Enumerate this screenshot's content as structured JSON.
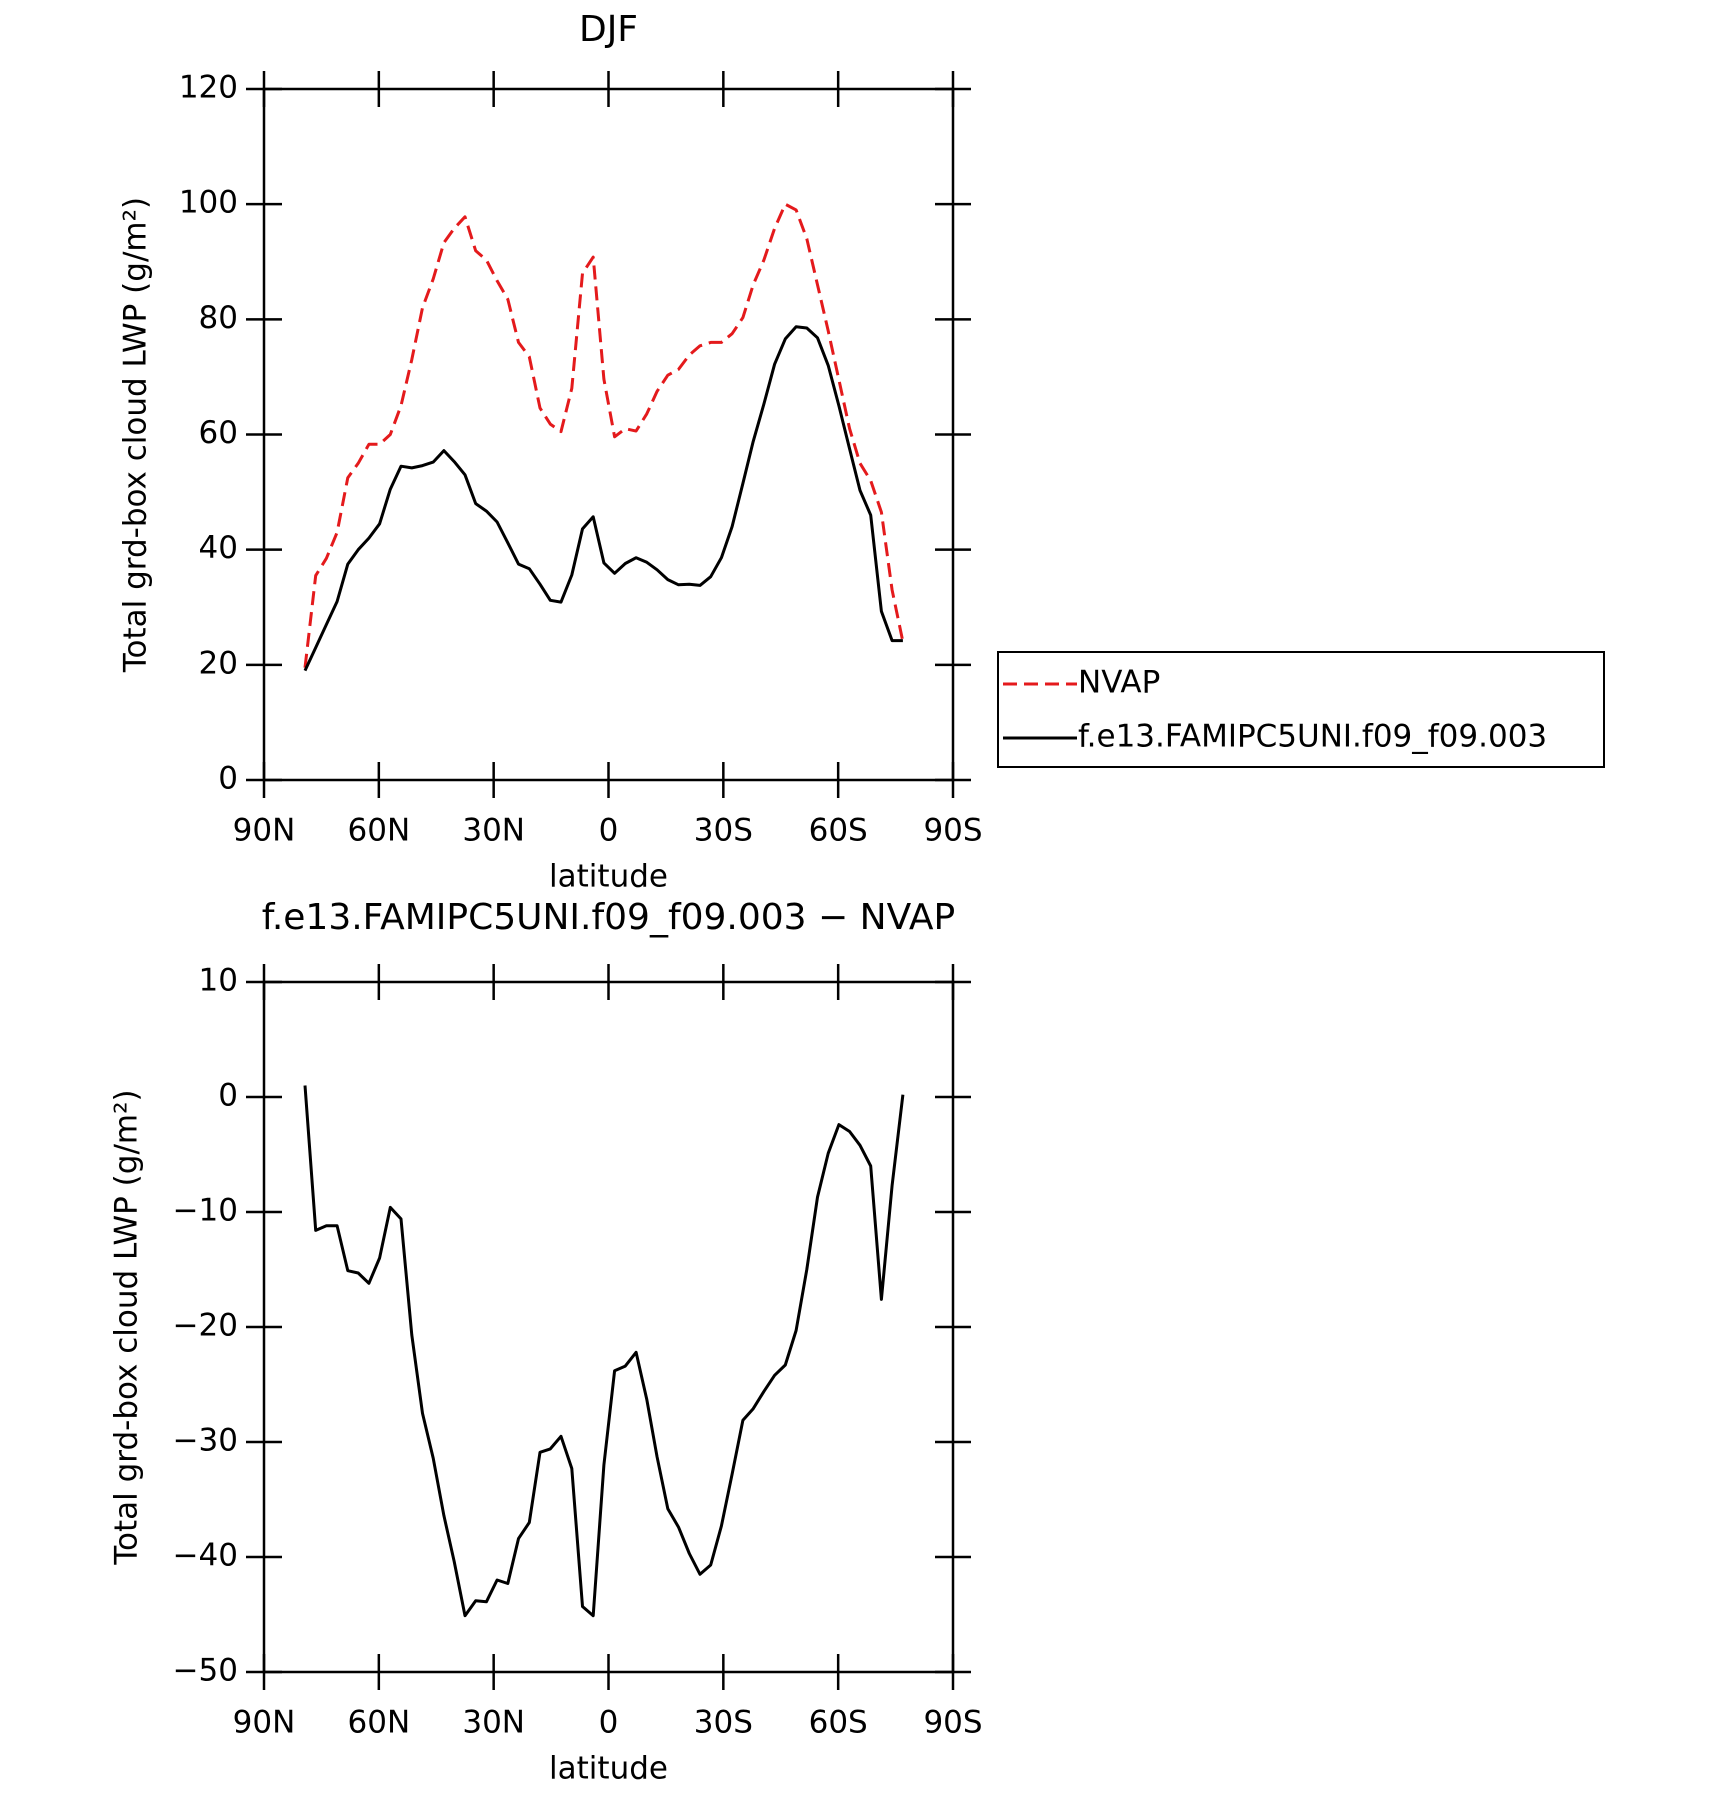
{
  "chart_data": [
    {
      "type": "line",
      "title": "DJF",
      "xlabel": "latitude",
      "ylabel": "Total grd-box cloud LWP (g/m²)",
      "x": [
        79.3,
        76.5,
        73.7,
        70.9,
        68.1,
        65.4,
        62.6,
        59.8,
        57.0,
        54.2,
        51.4,
        48.6,
        45.8,
        43.0,
        40.3,
        37.5,
        34.7,
        31.9,
        29.1,
        26.3,
        23.5,
        20.7,
        17.9,
        15.2,
        12.4,
        9.6,
        6.8,
        4.0,
        1.2,
        -1.6,
        -4.4,
        -7.2,
        -10.0,
        -12.7,
        -15.5,
        -18.3,
        -21.1,
        -23.9,
        -26.7,
        -29.5,
        -32.3,
        -35.1,
        -37.8,
        -40.6,
        -43.4,
        -46.2,
        -49.0,
        -51.8,
        -54.6,
        -57.4,
        -60.2,
        -63.0,
        -65.7,
        -68.5,
        -71.3,
        -74.1,
        -76.9
      ],
      "xlim": [
        90,
        -90
      ],
      "xticks": [
        {
          "value": 90,
          "label": "90N"
        },
        {
          "value": 60,
          "label": "60N"
        },
        {
          "value": 30,
          "label": "30N"
        },
        0,
        {
          "value": -30,
          "label": "30S"
        },
        {
          "value": -60,
          "label": "60S"
        },
        {
          "value": -90,
          "label": "90S"
        }
      ],
      "ylim": [
        0,
        120
      ],
      "yticks": [
        0,
        20,
        40,
        60,
        80,
        100,
        120
      ],
      "legend": "right",
      "series": [
        {
          "name": "NVAP",
          "color": "#e41a1c",
          "dashed": true,
          "values": [
            19.5,
            35.5,
            38.5,
            43,
            52.5,
            55,
            58.3,
            58.3,
            60,
            65,
            73,
            82,
            87,
            93.3,
            95.8,
            97.8,
            91.9,
            90.3,
            86.7,
            83.5,
            76,
            73.5,
            64.6,
            61.8,
            60.5,
            68,
            88,
            90.8,
            69.6,
            59.6,
            61,
            60.6,
            63.6,
            67.5,
            70.3,
            71.3,
            73.8,
            75.4,
            76,
            76,
            77.5,
            80.3,
            86,
            90.3,
            95.8,
            100,
            99,
            94,
            86,
            78,
            69.5,
            61,
            55,
            52,
            46.5,
            33,
            24
          ]
        },
        {
          "name": "f.e13.FAMIPC5UNI.f09_f09.003",
          "color": "#000000",
          "dashed": false,
          "values": [
            19,
            23,
            27,
            31,
            37.5,
            40,
            42,
            44.5,
            50.5,
            54.5,
            54.2,
            54.6,
            55.2,
            57.2,
            55.3,
            53,
            48,
            46.7,
            44.8,
            41.2,
            37.5,
            36.7,
            34,
            31.2,
            30.9,
            35.6,
            43.6,
            45.7,
            37.7,
            35.9,
            37.6,
            38.6,
            37.8,
            36.5,
            34.8,
            33.9,
            34,
            33.8,
            35.3,
            38.6,
            44,
            51.5,
            58.8,
            65.3,
            72.2,
            76.6,
            78.7,
            78.5,
            76.8,
            72,
            65,
            57.5,
            50.3,
            46,
            29.3,
            24.2,
            24.2
          ]
        }
      ]
    },
    {
      "type": "line",
      "title": "f.e13.FAMIPC5UNI.f09_f09.003 − NVAP",
      "xlabel": "latitude",
      "ylabel": "Total grd-box cloud LWP (g/m²)",
      "x": [
        79.3,
        76.5,
        73.7,
        70.9,
        68.1,
        65.4,
        62.6,
        59.8,
        57.0,
        54.2,
        51.4,
        48.6,
        45.8,
        43.0,
        40.3,
        37.5,
        34.7,
        31.9,
        29.1,
        26.3,
        23.5,
        20.7,
        17.9,
        15.2,
        12.4,
        9.6,
        6.8,
        4.0,
        1.2,
        -1.6,
        -4.4,
        -7.2,
        -10.0,
        -12.7,
        -15.5,
        -18.3,
        -21.1,
        -23.9,
        -26.7,
        -29.5,
        -32.3,
        -35.1,
        -37.8,
        -40.6,
        -43.4,
        -46.2,
        -49.0,
        -51.8,
        -54.6,
        -57.4,
        -60.2,
        -63.0,
        -65.7,
        -68.5,
        -71.3,
        -74.1,
        -76.9
      ],
      "xlim": [
        90,
        -90
      ],
      "xticks": [
        {
          "value": 90,
          "label": "90N"
        },
        {
          "value": 60,
          "label": "60N"
        },
        {
          "value": 30,
          "label": "30N"
        },
        0,
        {
          "value": -30,
          "label": "30S"
        },
        {
          "value": -60,
          "label": "60S"
        },
        {
          "value": -90,
          "label": "90S"
        }
      ],
      "ylim": [
        -50,
        10
      ],
      "yticks": [
        {
          "value": -50,
          "label": "−50"
        },
        {
          "value": -40,
          "label": "−40"
        },
        {
          "value": -30,
          "label": "−30"
        },
        {
          "value": -20,
          "label": "−20"
        },
        {
          "value": -10,
          "label": "−10"
        },
        0,
        10
      ],
      "series": [
        {
          "color": "#000000",
          "dashed": false,
          "values": [
            1,
            -11.6,
            -11.2,
            -11.2,
            -15.1,
            -15.3,
            -16.2,
            -14,
            -9.6,
            -10.6,
            -20.7,
            -27.5,
            -31.4,
            -36.4,
            -40.4,
            -45.1,
            -43.8,
            -43.9,
            -42,
            -42.3,
            -38.4,
            -37,
            -30.9,
            -30.6,
            -29.5,
            -32.3,
            -44.3,
            -45.1,
            -32,
            -23.8,
            -23.4,
            -22.2,
            -26.3,
            -31.3,
            -35.8,
            -37.4,
            -39.7,
            -41.5,
            -40.7,
            -37.3,
            -32.8,
            -28.1,
            -27.1,
            -25.6,
            -24.2,
            -23.3,
            -20.3,
            -15,
            -8.7,
            -4.9,
            -2.4,
            -3,
            -4.2,
            -6,
            -17.6,
            -7.7,
            0.2
          ]
        }
      ]
    }
  ]
}
